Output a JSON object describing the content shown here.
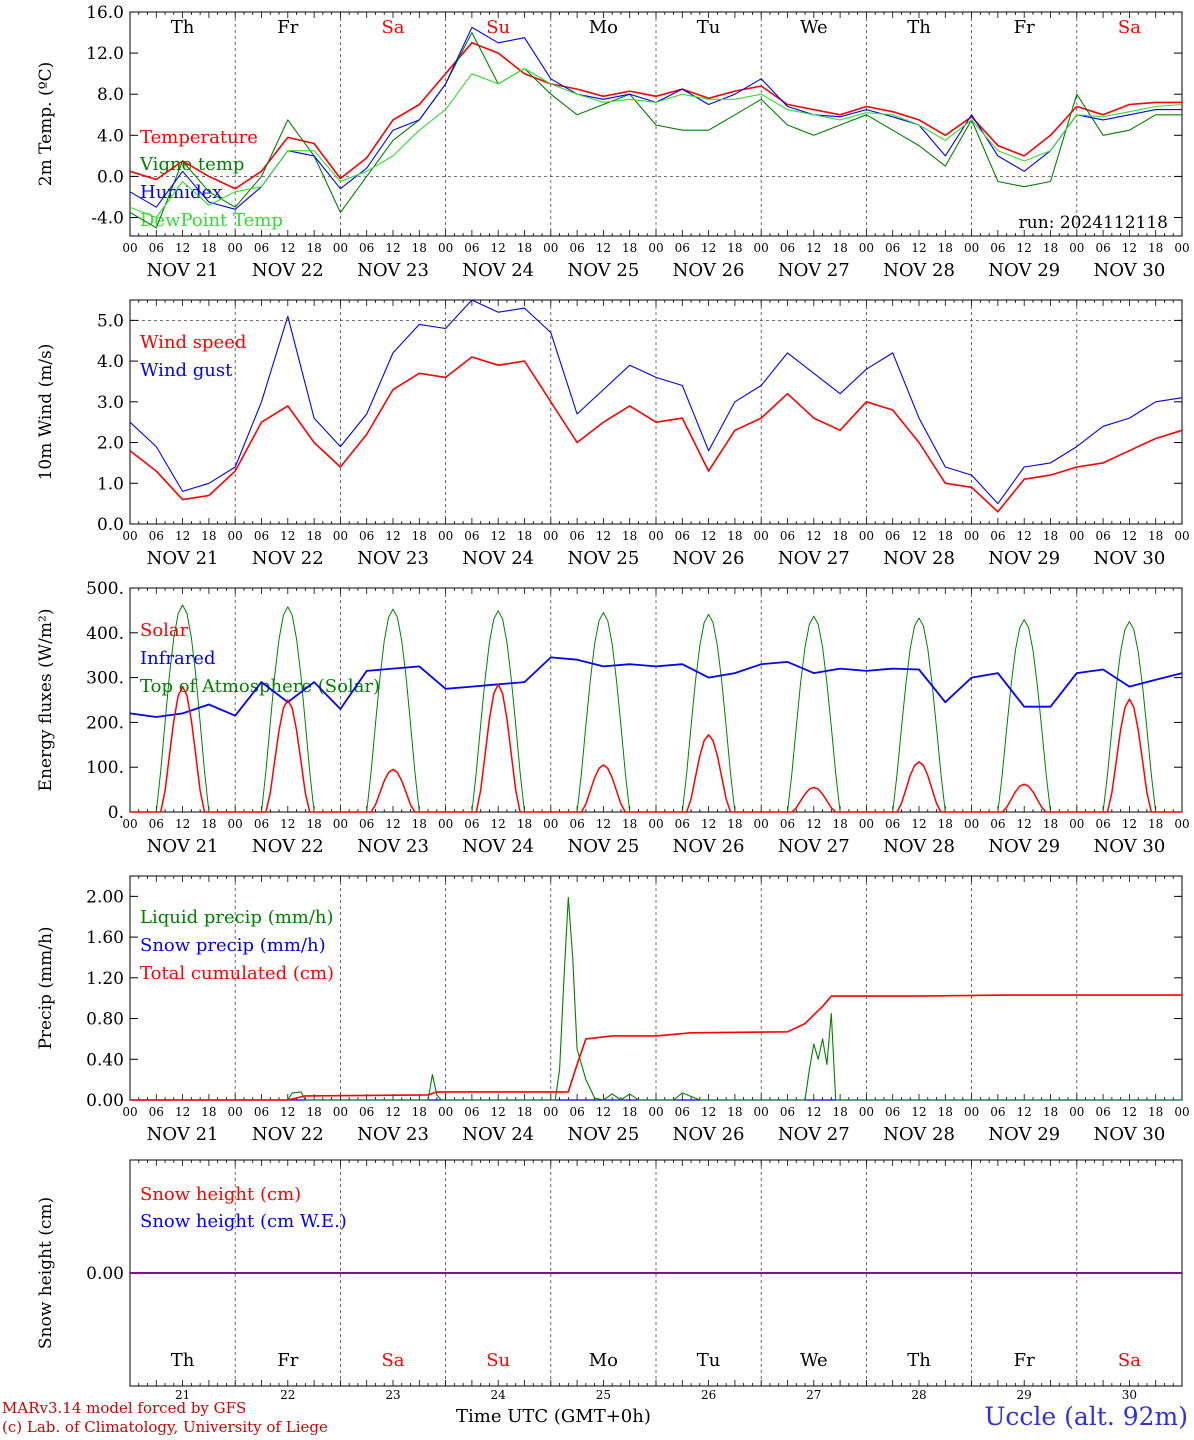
{
  "footer": {
    "model_line": "MARv3.14 model forced by GFS",
    "copyright_line": "(c) Lab. of Climatology, University of Liege",
    "xlabel": "Time UTC (GMT+0h)",
    "station": "Uccle (alt. 92m)"
  },
  "colors": {
    "red": "#ff0000",
    "green": "#008000",
    "blue": "#0000ff",
    "lightgreen": "#33dd33",
    "purple": "#800080",
    "grid": "#444444"
  },
  "weekdays": [
    {
      "label": "Th",
      "color": "#000000"
    },
    {
      "label": "Fr",
      "color": "#000000"
    },
    {
      "label": "Sa",
      "color": "#ff0000"
    },
    {
      "label": "Su",
      "color": "#ff0000"
    },
    {
      "label": "Mo",
      "color": "#000000"
    },
    {
      "label": "Tu",
      "color": "#000000"
    },
    {
      "label": "We",
      "color": "#000000"
    },
    {
      "label": "Th",
      "color": "#000000"
    },
    {
      "label": "Fr",
      "color": "#000000"
    },
    {
      "label": "Sa",
      "color": "#ff0000"
    }
  ],
  "date_labels": [
    "NOV 21",
    "NOV 22",
    "NOV 23",
    "NOV 24",
    "NOV 25",
    "NOV 26",
    "NOV 27",
    "NOV 28",
    "NOV 29",
    "NOV 30"
  ],
  "day_numbers": [
    "21",
    "22",
    "23",
    "24",
    "25",
    "26",
    "27",
    "28",
    "29",
    "30"
  ],
  "hour_ticks": [
    "00",
    "06",
    "12",
    "18"
  ],
  "final_hour_tick": "00",
  "chart_data": [
    {
      "type": "line",
      "ylabel": "2m Temp. (ºC)",
      "ylim": [
        -5.8,
        16.0
      ],
      "yticks": [
        16.0,
        12.0,
        8.0,
        4.0,
        0.0,
        -4.0
      ],
      "ytick_labels": [
        "16.0",
        "12.0",
        "8.0",
        "4.0",
        "0.0",
        "-4.0"
      ],
      "dashed_ref": [
        0.0
      ],
      "annotation": "run: 2024112118",
      "legend": [
        "Temperature",
        "Vigne temp",
        "Humidex",
        "DewPoint Temp"
      ],
      "x_hours": [
        0,
        6,
        12,
        18,
        24,
        30,
        36,
        42,
        48,
        54,
        60,
        66,
        72,
        78,
        84,
        90,
        96,
        102,
        108,
        114,
        120,
        126,
        132,
        138,
        144,
        150,
        156,
        162,
        168,
        174,
        180,
        186,
        192,
        198,
        204,
        210,
        216,
        222,
        228,
        234,
        240
      ],
      "series": [
        {
          "name": "Temperature",
          "color": "red",
          "values": [
            0.5,
            -0.3,
            1.5,
            0.0,
            -1.2,
            0.5,
            3.8,
            3.2,
            -0.2,
            1.8,
            5.5,
            7.0,
            10.0,
            13.0,
            12.0,
            10.0,
            9.0,
            8.5,
            7.8,
            8.3,
            7.8,
            8.5,
            7.6,
            8.3,
            8.8,
            7.0,
            6.5,
            6.0,
            6.8,
            6.3,
            5.5,
            4.0,
            5.8,
            3.0,
            2.0,
            4.0,
            6.8,
            6.0,
            7.0,
            7.2,
            7.2
          ]
        },
        {
          "name": "Vigne temp",
          "color": "green",
          "values": [
            -3.5,
            -5.0,
            1.5,
            -1.5,
            -3.0,
            0.0,
            5.5,
            2.0,
            -3.5,
            0.0,
            3.5,
            5.5,
            9.0,
            14.0,
            9.0,
            10.5,
            8.0,
            6.0,
            7.0,
            8.0,
            5.0,
            4.5,
            4.5,
            6.0,
            7.5,
            5.0,
            4.0,
            5.0,
            6.0,
            4.5,
            3.0,
            1.0,
            5.5,
            -0.5,
            -1.0,
            -0.5,
            8.0,
            4.0,
            4.5,
            6.0,
            6.0
          ]
        },
        {
          "name": "Humidex",
          "color": "blue",
          "values": [
            -1.5,
            -3.0,
            0.5,
            -2.5,
            -3.2,
            -1.0,
            2.5,
            2.0,
            -1.2,
            0.8,
            4.5,
            5.5,
            9.0,
            14.5,
            13.0,
            13.5,
            9.5,
            8.0,
            7.5,
            8.0,
            7.2,
            8.5,
            7.0,
            8.0,
            9.5,
            6.8,
            6.0,
            5.8,
            6.5,
            5.8,
            5.0,
            2.0,
            6.0,
            2.0,
            0.5,
            2.5,
            6.0,
            5.5,
            6.0,
            6.5,
            6.5
          ]
        },
        {
          "name": "DewPoint Temp",
          "color": "lightgreen",
          "values": [
            -3.0,
            -4.0,
            -0.5,
            -2.8,
            -1.5,
            -1.0,
            2.5,
            2.5,
            -0.5,
            0.5,
            2.0,
            4.5,
            6.5,
            10.0,
            9.0,
            10.5,
            9.0,
            8.0,
            7.2,
            7.5,
            7.2,
            8.0,
            7.5,
            7.5,
            8.0,
            6.5,
            6.0,
            5.5,
            6.2,
            6.0,
            5.0,
            3.5,
            5.5,
            2.5,
            1.5,
            2.5,
            6.0,
            5.8,
            6.3,
            6.8,
            7.0
          ]
        }
      ]
    },
    {
      "type": "line",
      "ylabel": "10m Wind (m/s)",
      "ylim": [
        0.0,
        5.5
      ],
      "yticks": [
        5.0,
        4.0,
        3.0,
        2.0,
        1.0,
        0.0
      ],
      "ytick_labels": [
        "5.0",
        "4.0",
        "3.0",
        "2.0",
        "1.0",
        "0.0"
      ],
      "dashed_ref": [
        5.0
      ],
      "legend": [
        "Wind speed",
        "Wind gust"
      ],
      "x_hours": [
        0,
        6,
        12,
        18,
        24,
        30,
        36,
        42,
        48,
        54,
        60,
        66,
        72,
        78,
        84,
        90,
        96,
        102,
        108,
        114,
        120,
        126,
        132,
        138,
        144,
        150,
        156,
        162,
        168,
        174,
        180,
        186,
        192,
        198,
        204,
        210,
        216,
        222,
        228,
        234,
        240
      ],
      "series": [
        {
          "name": "Wind speed",
          "color": "red",
          "values": [
            1.8,
            1.3,
            0.6,
            0.7,
            1.3,
            2.5,
            2.9,
            2.0,
            1.4,
            2.2,
            3.3,
            3.7,
            3.6,
            4.1,
            3.9,
            4.0,
            3.0,
            2.0,
            2.5,
            2.9,
            2.5,
            2.6,
            1.3,
            2.3,
            2.6,
            3.2,
            2.6,
            2.3,
            3.0,
            2.8,
            2.0,
            1.0,
            0.9,
            0.3,
            1.1,
            1.2,
            1.4,
            1.5,
            1.8,
            2.1,
            2.3
          ]
        },
        {
          "name": "Wind gust",
          "color": "blue",
          "values": [
            2.5,
            1.9,
            0.8,
            1.0,
            1.4,
            3.0,
            5.1,
            2.6,
            1.9,
            2.7,
            4.2,
            4.9,
            4.8,
            5.5,
            5.2,
            5.3,
            4.7,
            2.7,
            3.3,
            3.9,
            3.6,
            3.4,
            1.8,
            3.0,
            3.4,
            4.2,
            3.7,
            3.2,
            3.8,
            4.2,
            2.6,
            1.4,
            1.2,
            0.5,
            1.4,
            1.5,
            1.9,
            2.4,
            2.6,
            3.0,
            3.1
          ]
        }
      ]
    },
    {
      "type": "line",
      "ylabel": "Energy fluxes (W/m²)",
      "ylim": [
        0,
        500
      ],
      "yticks": [
        500,
        400,
        300,
        200,
        100,
        0
      ],
      "ytick_labels": [
        "500.",
        "400.",
        "300.",
        "200.",
        "100.",
        "0."
      ],
      "legend": [
        "Solar",
        "Infrared",
        "Top of Atmosphere (Solar)"
      ],
      "peak_days": [
        {
          "day": 0,
          "solar": 280,
          "toa": 462
        },
        {
          "day": 1,
          "solar": 250,
          "toa": 458
        },
        {
          "day": 2,
          "solar": 95,
          "toa": 453
        },
        {
          "day": 3,
          "solar": 285,
          "toa": 449
        },
        {
          "day": 4,
          "solar": 105,
          "toa": 445
        },
        {
          "day": 5,
          "solar": 172,
          "toa": 441
        },
        {
          "day": 6,
          "solar": 55,
          "toa": 437
        },
        {
          "day": 7,
          "solar": 112,
          "toa": 433
        },
        {
          "day": 8,
          "solar": 62,
          "toa": 429
        },
        {
          "day": 9,
          "solar": 252,
          "toa": 425
        }
      ],
      "x_hours": [
        0,
        6,
        12,
        18,
        24,
        30,
        36,
        42,
        48,
        54,
        60,
        66,
        72,
        78,
        84,
        90,
        96,
        102,
        108,
        114,
        120,
        126,
        132,
        138,
        144,
        150,
        156,
        162,
        168,
        174,
        180,
        186,
        192,
        198,
        204,
        210,
        216,
        222,
        228,
        234,
        240
      ],
      "series": [
        {
          "name": "Infrared",
          "color": "blue",
          "values": [
            220,
            212,
            220,
            240,
            215,
            290,
            245,
            290,
            230,
            315,
            320,
            325,
            275,
            280,
            285,
            290,
            345,
            340,
            325,
            330,
            325,
            330,
            300,
            310,
            330,
            335,
            310,
            320,
            315,
            320,
            318,
            245,
            300,
            310,
            235,
            235,
            310,
            318,
            280,
            295,
            310
          ]
        }
      ]
    },
    {
      "type": "line",
      "ylabel": "Precip (mm/h)",
      "ylim": [
        0.0,
        2.2
      ],
      "yticks": [
        2.0,
        1.6,
        1.2,
        0.8,
        0.4,
        0.0
      ],
      "ytick_labels": [
        "2.00",
        "1.60",
        "1.20",
        "0.80",
        "0.40",
        "0.00"
      ],
      "legend": [
        "Liquid precip (mm/h)",
        "Snow precip (mm/h)",
        "Total cumulated (cm)"
      ],
      "liquid_points": [
        [
          0,
          0
        ],
        [
          36,
          0
        ],
        [
          37,
          0.07
        ],
        [
          39,
          0.08
        ],
        [
          40,
          0
        ],
        [
          68,
          0
        ],
        [
          69,
          0.25
        ],
        [
          70,
          0.05
        ],
        [
          71,
          0
        ],
        [
          97,
          0
        ],
        [
          98,
          0.3
        ],
        [
          99,
          1.2
        ],
        [
          100,
          1.99
        ],
        [
          101,
          1.4
        ],
        [
          102,
          0.5
        ],
        [
          104,
          0.2
        ],
        [
          106,
          0.02
        ],
        [
          108,
          0
        ],
        [
          110,
          0.06
        ],
        [
          112,
          0
        ],
        [
          114,
          0.06
        ],
        [
          116,
          0
        ],
        [
          124,
          0
        ],
        [
          126,
          0.07
        ],
        [
          130,
          0
        ],
        [
          154,
          0
        ],
        [
          155,
          0.3
        ],
        [
          156,
          0.55
        ],
        [
          157,
          0.4
        ],
        [
          158,
          0.6
        ],
        [
          159,
          0.35
        ],
        [
          160,
          0.85
        ],
        [
          161,
          0
        ],
        [
          240,
          0
        ]
      ],
      "snow_points": [
        [
          0,
          0
        ],
        [
          240,
          0
        ]
      ],
      "total_points": [
        [
          0,
          0
        ],
        [
          36,
          0
        ],
        [
          40,
          0.04
        ],
        [
          68,
          0.05
        ],
        [
          70,
          0.08
        ],
        [
          100,
          0.08
        ],
        [
          102,
          0.35
        ],
        [
          104,
          0.6
        ],
        [
          110,
          0.63
        ],
        [
          120,
          0.63
        ],
        [
          128,
          0.66
        ],
        [
          150,
          0.67
        ],
        [
          154,
          0.75
        ],
        [
          158,
          0.92
        ],
        [
          160,
          1.02
        ],
        [
          180,
          1.02
        ],
        [
          200,
          1.03
        ],
        [
          240,
          1.03
        ]
      ]
    },
    {
      "type": "line",
      "ylabel": "Snow height (cm)",
      "ylim": [
        -1,
        1
      ],
      "yticks": [
        0.0
      ],
      "ytick_labels": [
        "0.00"
      ],
      "legend": [
        "Snow height (cm)",
        "Snow height (cm W.E.)"
      ],
      "x_hours": [
        0,
        240
      ],
      "series": [
        {
          "name": "Snow height (cm)",
          "color": "red",
          "values": [
            0,
            0
          ]
        },
        {
          "name": "Snow height (cm W.E.)",
          "color": "blue",
          "values": [
            0,
            0
          ]
        }
      ]
    }
  ]
}
